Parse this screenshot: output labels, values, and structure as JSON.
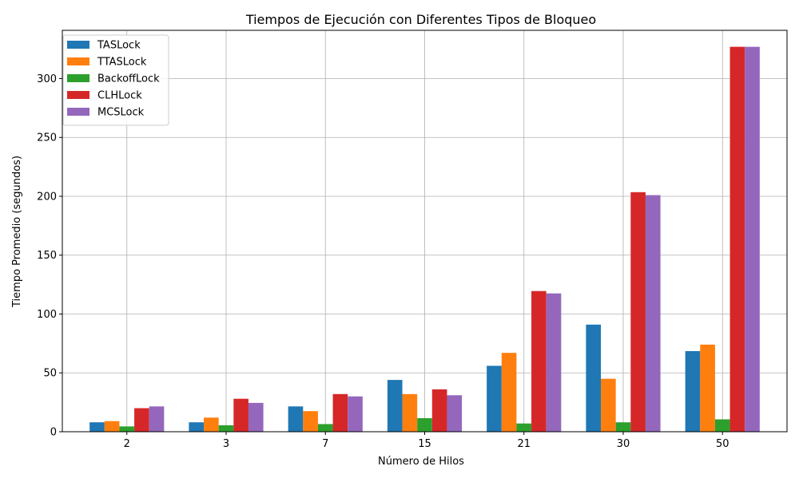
{
  "chart_data": {
    "type": "bar",
    "title": "Tiempos de Ejecución con Diferentes Tipos de Bloqueo",
    "xlabel": "Número de Hilos",
    "ylabel": "Tiempo Promedio (segundos)",
    "categories": [
      "2",
      "3",
      "7",
      "15",
      "21",
      "30",
      "50"
    ],
    "ylim": [
      0,
      341
    ],
    "yticks": [
      0,
      50,
      100,
      150,
      200,
      250,
      300
    ],
    "grid": true,
    "legend_position": "top-left",
    "series": [
      {
        "name": "TASLock",
        "color": "#1f77b4",
        "values": [
          8,
          8,
          21.5,
          44,
          56,
          91,
          68.5
        ]
      },
      {
        "name": "TTASLock",
        "color": "#ff7f0e",
        "values": [
          9,
          12,
          17.5,
          32,
          67,
          45,
          74
        ]
      },
      {
        "name": "BackoffLock",
        "color": "#2ca02c",
        "values": [
          4.5,
          5.5,
          6.5,
          11.5,
          7,
          8,
          10.5
        ]
      },
      {
        "name": "CLHLock",
        "color": "#d62728",
        "values": [
          20,
          28,
          32,
          36,
          119.5,
          203.5,
          327
        ]
      },
      {
        "name": "MCSLock",
        "color": "#9467bd",
        "values": [
          21.5,
          24.5,
          30,
          31,
          117.5,
          201,
          327
        ]
      }
    ]
  }
}
